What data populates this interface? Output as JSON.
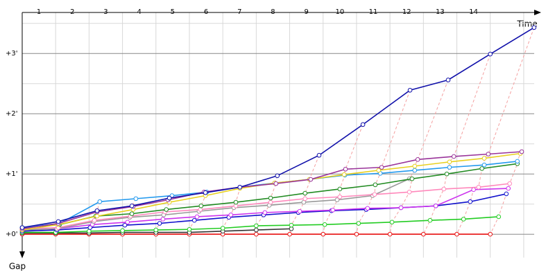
{
  "chart_data": {
    "type": "line",
    "x_label": "Time",
    "y_label": "Gap",
    "xlim": [
      0,
      15.5
    ],
    "ylim": [
      -0.4,
      3.6
    ],
    "xticks": [
      {
        "value": 0.5,
        "label": "1"
      },
      {
        "value": 1.5,
        "label": "2"
      },
      {
        "value": 2.5,
        "label": "3"
      },
      {
        "value": 3.5,
        "label": "4"
      },
      {
        "value": 4.5,
        "label": "5"
      },
      {
        "value": 5.5,
        "label": "6"
      },
      {
        "value": 6.5,
        "label": "7"
      },
      {
        "value": 7.5,
        "label": "8"
      },
      {
        "value": 8.5,
        "label": "9"
      },
      {
        "value": 9.5,
        "label": "10"
      },
      {
        "value": 10.5,
        "label": "11"
      },
      {
        "value": 11.5,
        "label": "12"
      },
      {
        "value": 12.5,
        "label": "13"
      },
      {
        "value": 13.5,
        "label": "14"
      }
    ],
    "xgrid": [
      0,
      1,
      2,
      3,
      4,
      5,
      6,
      7,
      8,
      9,
      10,
      11,
      12,
      13,
      14,
      15
    ],
    "yticks": [
      {
        "value": 0,
        "label": "+0'"
      },
      {
        "value": 1,
        "label": "+1'"
      },
      {
        "value": 2,
        "label": "+2'"
      },
      {
        "value": 3,
        "label": "+3'"
      }
    ],
    "yminor": [
      0.5,
      1.5,
      2.5,
      3.5
    ],
    "series": [
      {
        "color": "#e81010",
        "x": [
          0,
          1,
          2,
          3,
          4,
          5,
          6,
          7,
          8,
          9,
          10,
          11,
          12,
          13,
          14
        ],
        "values": [
          0,
          0,
          0,
          0,
          0,
          0,
          0,
          0,
          0,
          0,
          0,
          0,
          0,
          0,
          0
        ]
      },
      {
        "color": "#333333",
        "x": [
          0,
          1,
          2,
          3,
          4,
          5,
          6,
          7,
          8.05
        ],
        "values": [
          0.02,
          0.02,
          0.02,
          0.03,
          0.03,
          0.03,
          0.05,
          0.07,
          0.09
        ]
      },
      {
        "color": "#22cc22",
        "x": [
          0,
          1,
          2,
          3,
          4,
          5,
          6,
          7,
          8.05,
          9.05,
          10.06,
          11.06,
          12.2,
          13.2,
          14.25
        ],
        "values": [
          0.03,
          0.03,
          0.05,
          0.06,
          0.07,
          0.08,
          0.1,
          0.14,
          0.15,
          0.16,
          0.18,
          0.2,
          0.23,
          0.25,
          0.29
        ]
      },
      {
        "color": "#1010cc",
        "x": [
          0,
          1.04,
          2.03,
          3.07,
          4.11,
          5.15,
          6.18,
          7.22,
          8.26,
          9.25,
          10.29,
          11.33,
          12.37,
          13.4,
          14.48
        ],
        "values": [
          0.05,
          0.07,
          0.11,
          0.15,
          0.18,
          0.23,
          0.28,
          0.32,
          0.36,
          0.39,
          0.41,
          0.44,
          0.47,
          0.54,
          0.67
        ]
      },
      {
        "color": "#cc33ee",
        "x": [
          0,
          1.04,
          2.1,
          3.15,
          4.21,
          5.23,
          6.24,
          7.26,
          8.3,
          9.29,
          10.33,
          11.33,
          12.37,
          13.5,
          14.54
        ],
        "values": [
          0.07,
          0.09,
          0.16,
          0.2,
          0.25,
          0.29,
          0.32,
          0.36,
          0.38,
          0.4,
          0.43,
          0.44,
          0.47,
          0.74,
          0.76
        ]
      },
      {
        "color": "#999999",
        "x": [
          0,
          1.04,
          2.14,
          3.22,
          4.23,
          5.29,
          6.33,
          7.39,
          8.42,
          9.42,
          10.48,
          11.58
        ],
        "values": [
          0.07,
          0.09,
          0.21,
          0.28,
          0.32,
          0.38,
          0.44,
          0.48,
          0.53,
          0.57,
          0.64,
          0.92
        ]
      },
      {
        "color": "#ff88bb",
        "x": [
          0,
          1.08,
          2.16,
          3.24,
          4.27,
          5.33,
          6.39,
          7.43,
          8.46,
          9.5,
          10.54,
          11.58,
          12.61,
          13.65,
          14.58
        ],
        "values": [
          0.09,
          0.11,
          0.23,
          0.3,
          0.37,
          0.41,
          0.47,
          0.53,
          0.59,
          0.62,
          0.66,
          0.7,
          0.75,
          0.78,
          0.84
        ]
      },
      {
        "color": "#228b22",
        "x": [
          0,
          1.12,
          2.2,
          3.28,
          4.31,
          5.35,
          6.39,
          7.43,
          8.46,
          9.5,
          10.56,
          11.66,
          12.7,
          13.75,
          14.81
        ],
        "values": [
          0.11,
          0.16,
          0.3,
          0.34,
          0.41,
          0.47,
          0.53,
          0.6,
          0.68,
          0.75,
          0.82,
          0.92,
          1.0,
          1.09,
          1.17
        ]
      },
      {
        "color": "#2299ee",
        "x": [
          0,
          1.12,
          2.32,
          3.4,
          4.48,
          5.52,
          6.51,
          7.55,
          8.59,
          9.65,
          10.71,
          11.74,
          12.78,
          13.82,
          14.81
        ],
        "values": [
          0.11,
          0.18,
          0.54,
          0.59,
          0.64,
          0.7,
          0.78,
          0.85,
          0.91,
          0.98,
          1.01,
          1.06,
          1.11,
          1.15,
          1.21
        ]
      },
      {
        "color": "#e8d020",
        "x": [
          0,
          1.08,
          2.24,
          3.32,
          4.4,
          5.48,
          6.51,
          7.55,
          8.59,
          9.63,
          10.66,
          11.74,
          12.78,
          13.82,
          14.9
        ],
        "values": [
          0.07,
          0.16,
          0.3,
          0.41,
          0.53,
          0.64,
          0.76,
          0.85,
          0.91,
          0.99,
          1.06,
          1.13,
          1.2,
          1.26,
          1.34
        ]
      },
      {
        "color": "#993399",
        "x": [
          0,
          1.08,
          2.24,
          3.32,
          4.36,
          5.44,
          6.51,
          7.59,
          8.63,
          9.67,
          10.75,
          11.83,
          12.91,
          13.94,
          14.94
        ],
        "values": [
          0.09,
          0.18,
          0.37,
          0.46,
          0.57,
          0.7,
          0.78,
          0.84,
          0.91,
          1.08,
          1.11,
          1.24,
          1.29,
          1.33,
          1.37
        ]
      },
      {
        "color": "#1010aa",
        "x": [
          0,
          1.08,
          2.24,
          3.28,
          4.4,
          5.48,
          6.51,
          7.63,
          8.88,
          10.19,
          11.6,
          12.74,
          14.0,
          15.31
        ],
        "values": [
          0.11,
          0.21,
          0.39,
          0.47,
          0.6,
          0.69,
          0.78,
          0.97,
          1.31,
          1.82,
          2.39,
          2.56,
          2.99,
          3.43
        ]
      }
    ]
  }
}
